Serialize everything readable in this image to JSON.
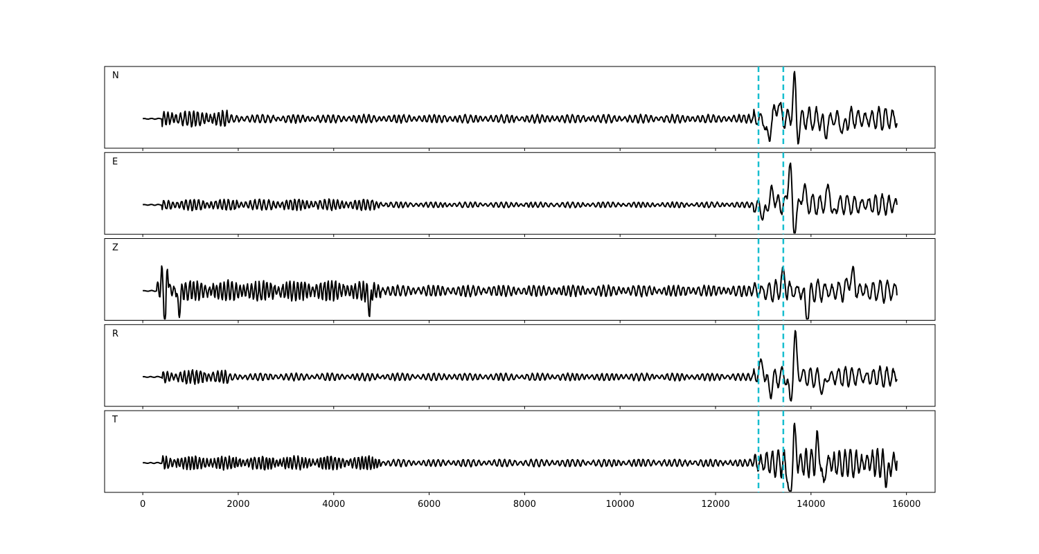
{
  "chart_data": {
    "type": "line",
    "xlim": [
      -800,
      16600
    ],
    "x_ticks": [
      0,
      2000,
      4000,
      6000,
      8000,
      10000,
      12000,
      14000,
      16000
    ],
    "x_tick_labels": [
      "0",
      "2000",
      "4000",
      "6000",
      "8000",
      "10000",
      "12000",
      "14000",
      "16000"
    ],
    "grid": false,
    "legend": "none",
    "x_range": [
      0,
      15800
    ],
    "marker_lines": {
      "x": [
        12900,
        13420
      ],
      "color": "#17becf",
      "style": "dashed"
    },
    "trace_color": "#000000",
    "panels": [
      {
        "label": "N",
        "ylim": [
          -1.0,
          1.0
        ],
        "baseline": 0.0,
        "segments": [
          {
            "x0": 0,
            "x1": 400,
            "amp": 0.01,
            "period": 150
          },
          {
            "x0": 400,
            "x1": 1800,
            "amp": 0.18,
            "period": 90
          },
          {
            "x0": 1800,
            "x1": 12800,
            "amp": 0.09,
            "period": 110
          },
          {
            "x0": 12800,
            "x1": 15800,
            "amp": 0.25,
            "period": 150
          }
        ],
        "events": [
          {
            "x": 13100,
            "amp": -0.45,
            "width": 60
          },
          {
            "x": 13300,
            "amp": 0.35,
            "width": 60
          },
          {
            "x": 13660,
            "amp": 1.05,
            "width": 45
          },
          {
            "x": 13720,
            "amp": -0.55,
            "width": 50
          },
          {
            "x": 14300,
            "amp": -0.35,
            "width": 50
          },
          {
            "x": 14680,
            "amp": -0.35,
            "width": 45
          }
        ],
        "end_value": -0.1
      },
      {
        "label": "E",
        "ylim": [
          -1.0,
          1.0
        ],
        "baseline": 0.0,
        "segments": [
          {
            "x0": 0,
            "x1": 400,
            "amp": 0.01,
            "period": 150
          },
          {
            "x0": 400,
            "x1": 5000,
            "amp": 0.12,
            "period": 95
          },
          {
            "x0": 5000,
            "x1": 12800,
            "amp": 0.06,
            "period": 110
          },
          {
            "x0": 12800,
            "x1": 15800,
            "amp": 0.22,
            "period": 150
          }
        ],
        "events": [
          {
            "x": 13000,
            "amp": -0.3,
            "width": 50
          },
          {
            "x": 13200,
            "amp": 0.3,
            "width": 60
          },
          {
            "x": 13560,
            "amp": 0.95,
            "width": 50
          },
          {
            "x": 13650,
            "amp": -0.75,
            "width": 45
          },
          {
            "x": 13850,
            "amp": 0.35,
            "width": 55
          },
          {
            "x": 14370,
            "amp": 0.45,
            "width": 50
          },
          {
            "x": 14450,
            "amp": -0.3,
            "width": 50
          }
        ],
        "end_value": 0.0
      },
      {
        "label": "Z",
        "ylim": [
          -1.0,
          1.0
        ],
        "baseline": 0.0,
        "segments": [
          {
            "x0": 0,
            "x1": 300,
            "amp": 0.01,
            "period": 150
          },
          {
            "x0": 300,
            "x1": 5000,
            "amp": 0.22,
            "period": 85
          },
          {
            "x0": 5000,
            "x1": 12800,
            "amp": 0.12,
            "period": 110
          },
          {
            "x0": 12800,
            "x1": 15800,
            "amp": 0.25,
            "period": 150
          }
        ],
        "events": [
          {
            "x": 400,
            "amp": 0.35,
            "width": 35
          },
          {
            "x": 470,
            "amp": -1.0,
            "width": 28
          },
          {
            "x": 510,
            "amp": 0.7,
            "width": 28
          },
          {
            "x": 760,
            "amp": -0.5,
            "width": 35
          },
          {
            "x": 4750,
            "amp": -0.4,
            "width": 40
          },
          {
            "x": 13400,
            "amp": 0.3,
            "width": 60
          },
          {
            "x": 13920,
            "amp": -0.6,
            "width": 55
          },
          {
            "x": 14850,
            "amp": 0.4,
            "width": 70
          }
        ],
        "end_value": -0.1
      },
      {
        "label": "R",
        "ylim": [
          -1.0,
          1.0
        ],
        "baseline": 0.0,
        "segments": [
          {
            "x0": 0,
            "x1": 400,
            "amp": 0.01,
            "period": 150
          },
          {
            "x0": 400,
            "x1": 1800,
            "amp": 0.15,
            "period": 90
          },
          {
            "x0": 1800,
            "x1": 12800,
            "amp": 0.08,
            "period": 110
          },
          {
            "x0": 12800,
            "x1": 15800,
            "amp": 0.22,
            "period": 150
          }
        ],
        "events": [
          {
            "x": 12950,
            "amp": 0.3,
            "width": 60
          },
          {
            "x": 13150,
            "amp": -0.3,
            "width": 60
          },
          {
            "x": 13570,
            "amp": -0.55,
            "width": 50
          },
          {
            "x": 13670,
            "amp": 0.95,
            "width": 45
          },
          {
            "x": 14250,
            "amp": -0.35,
            "width": 50
          }
        ],
        "end_value": -0.05
      },
      {
        "label": "T",
        "ylim": [
          -1.0,
          1.0
        ],
        "baseline": 0.0,
        "segments": [
          {
            "x0": 0,
            "x1": 400,
            "amp": 0.01,
            "period": 150
          },
          {
            "x0": 400,
            "x1": 5000,
            "amp": 0.15,
            "period": 80
          },
          {
            "x0": 5000,
            "x1": 12800,
            "amp": 0.08,
            "period": 110
          },
          {
            "x0": 12800,
            "x1": 15800,
            "amp": 0.32,
            "period": 120
          }
        ],
        "events": [
          {
            "x": 13560,
            "amp": -1.0,
            "width": 45
          },
          {
            "x": 13650,
            "amp": 0.8,
            "width": 40
          },
          {
            "x": 14150,
            "amp": 0.55,
            "width": 45
          },
          {
            "x": 14250,
            "amp": -0.5,
            "width": 45
          },
          {
            "x": 15600,
            "amp": -0.35,
            "width": 50
          }
        ],
        "end_value": 0.05
      }
    ]
  }
}
